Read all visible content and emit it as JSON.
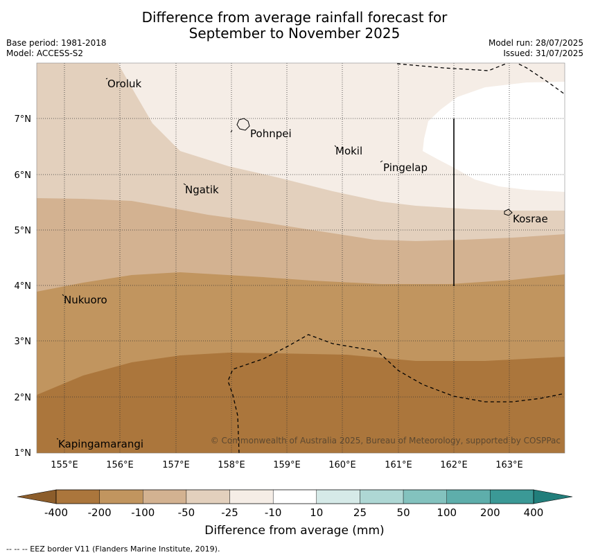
{
  "title_line1": "Difference from average rainfall forecast for",
  "title_line2": "September to November 2025",
  "base_period": "Base period: 1981-2018",
  "model": "Model: ACCESS-S2",
  "model_run": "Model run: 28/07/2025",
  "issued": "Issued: 31/07/2025",
  "places": {
    "oroluk": "Oroluk",
    "pohnpei": "Pohnpei",
    "mokil": "Mokil",
    "pingelap": "Pingelap",
    "ngatik": "Ngatik",
    "kosrae": "Kosrae",
    "nukuoro": "Nukuoro",
    "kapingamarangi": "Kapingamarangi"
  },
  "credit": "© Commonwealth of Australia 2025, Bureau of Meteorology, supported by COSPPac",
  "lon_ticks": [
    "155°E",
    "156°E",
    "157°E",
    "158°E",
    "159°E",
    "160°E",
    "161°E",
    "162°E",
    "163°E"
  ],
  "lat_ticks": [
    "7°N",
    "6°N",
    "5°N",
    "4°N",
    "3°N",
    "2°N",
    "1°N"
  ],
  "colorbar": {
    "label": "Difference from average (mm)",
    "ticks": [
      "-400",
      "-200",
      "-100",
      "-50",
      "-25",
      "-10",
      "10",
      "25",
      "50",
      "100",
      "200",
      "400"
    ],
    "colors": [
      "#ab763c",
      "#c1955f",
      "#d3b291",
      "#e3d0bd",
      "#f5ede6",
      "#ffffff",
      "#d6eae8",
      "#aed7d4",
      "#83c2be",
      "#5eaeab",
      "#3b9996"
    ],
    "under_color": "#8c5d2b",
    "over_color": "#217e7b"
  },
  "footer": "--  --  -- EEZ border V11 (Flanders Marine Institute, 2019)."
}
